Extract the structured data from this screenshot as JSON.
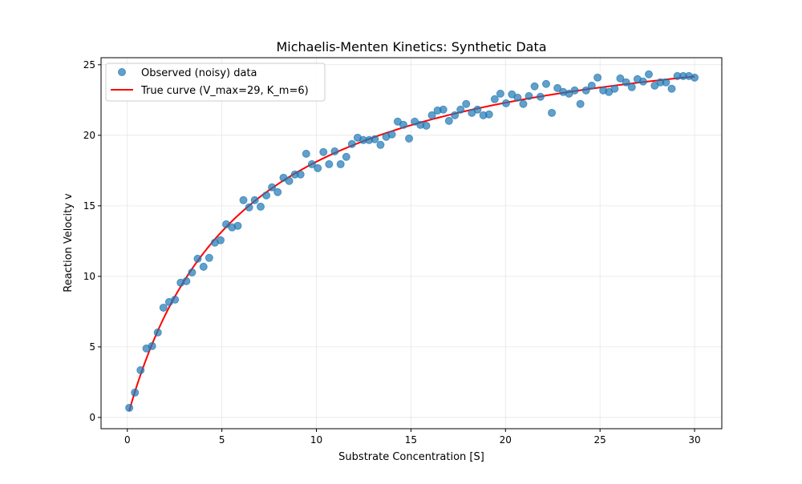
{
  "chart_data": {
    "type": "scatter",
    "title": "Michaelis-Menten Kinetics: Synthetic Data",
    "xlabel": "Substrate Concentration [S]",
    "ylabel": "Reaction Velocity v",
    "xlim": [
      -1.39,
      31.44
    ],
    "ylim": [
      -0.8,
      25.5
    ],
    "xticks": [
      0,
      5,
      10,
      15,
      20,
      25,
      30
    ],
    "yticks": [
      0,
      5,
      10,
      15,
      20,
      25
    ],
    "grid": true,
    "legend_position": "top-left",
    "series": [
      {
        "name": "Observed (noisy) data",
        "kind": "scatter",
        "color": "#1f77b4",
        "x": [
          0.1,
          0.4,
          0.7,
          1.01,
          1.31,
          1.61,
          1.91,
          2.21,
          2.52,
          2.82,
          3.12,
          3.42,
          3.72,
          4.03,
          4.33,
          4.63,
          4.93,
          5.23,
          5.54,
          5.84,
          6.14,
          6.44,
          6.74,
          7.05,
          7.35,
          7.65,
          7.95,
          8.26,
          8.56,
          8.86,
          9.16,
          9.46,
          9.76,
          10.07,
          10.37,
          10.67,
          10.97,
          11.28,
          11.58,
          11.88,
          12.18,
          12.48,
          12.79,
          13.09,
          13.39,
          13.69,
          13.99,
          14.3,
          14.6,
          14.9,
          15.2,
          15.5,
          15.81,
          16.11,
          16.41,
          16.71,
          17.01,
          17.32,
          17.62,
          17.92,
          18.22,
          18.52,
          18.83,
          19.13,
          19.43,
          19.73,
          20.03,
          20.34,
          20.64,
          20.94,
          21.24,
          21.54,
          21.85,
          22.15,
          22.45,
          22.75,
          23.05,
          23.36,
          23.66,
          23.96,
          24.26,
          24.56,
          24.87,
          25.17,
          25.47,
          25.77,
          26.07,
          26.38,
          26.68,
          26.98,
          27.28,
          27.58,
          27.89,
          28.19,
          28.49,
          28.79,
          29.09,
          29.4,
          29.7,
          30.0
        ],
        "y": [
          0.68,
          1.76,
          3.35,
          4.89,
          5.06,
          6.02,
          7.78,
          8.18,
          8.35,
          9.55,
          9.66,
          10.28,
          11.25,
          10.68,
          11.31,
          12.39,
          12.56,
          13.69,
          13.47,
          13.58,
          15.4,
          14.89,
          15.4,
          14.94,
          15.74,
          16.31,
          15.97,
          16.99,
          16.76,
          17.22,
          17.22,
          18.69,
          17.95,
          17.67,
          18.81,
          17.95,
          18.86,
          17.95,
          18.47,
          19.38,
          19.83,
          19.66,
          19.66,
          19.72,
          19.32,
          19.89,
          20.06,
          20.97,
          20.74,
          19.77,
          20.97,
          20.74,
          20.68,
          21.42,
          21.76,
          21.82,
          21.02,
          21.42,
          21.82,
          22.22,
          21.59,
          21.82,
          21.42,
          21.48,
          22.56,
          22.95,
          22.27,
          22.9,
          22.67,
          22.22,
          22.78,
          23.47,
          22.73,
          23.64,
          21.59,
          23.35,
          23.07,
          22.95,
          23.18,
          22.22,
          23.18,
          23.52,
          24.09,
          23.18,
          23.07,
          23.3,
          24.03,
          23.75,
          23.41,
          23.98,
          23.81,
          24.32,
          23.52,
          23.75,
          23.75,
          23.3,
          24.2,
          24.2,
          24.2,
          24.09
        ]
      },
      {
        "name": "True curve (V_max=29, K_m=6)",
        "kind": "line",
        "color": "#ff0000",
        "vmax": 29,
        "km": 6,
        "x_range": [
          0.1,
          30
        ]
      }
    ]
  }
}
